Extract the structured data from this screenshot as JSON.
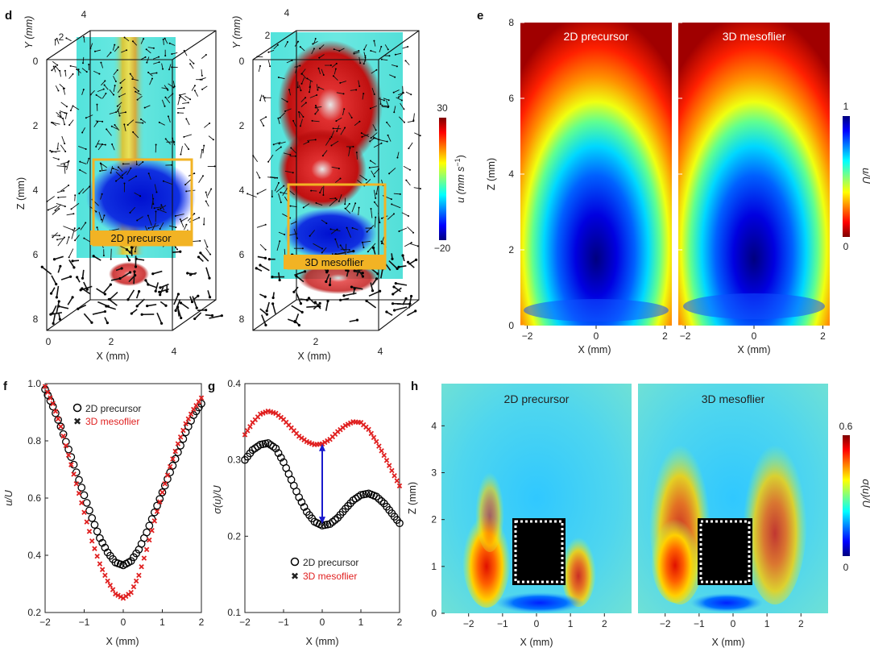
{
  "panels": {
    "d": "d",
    "e": "e",
    "f": "f",
    "g": "g",
    "h": "h"
  },
  "colors": {
    "jet": [
      "#00007f",
      "#0000ff",
      "#007fff",
      "#00ffff",
      "#7fff7f",
      "#ffff00",
      "#ff7f00",
      "#ff0000",
      "#7f0000"
    ],
    "highlight": "#f2b324",
    "precursor_marker": "#000000",
    "mesoflier_marker": "#e02020",
    "arrow": "#1a1acc"
  },
  "panel_d": {
    "left": {
      "y_axis_label": "Y (mm)",
      "y_axis_ticks": [
        "2",
        "4"
      ],
      "z_axis_label": "Z (mm)",
      "z_axis_ticks": [
        "0",
        "2",
        "4",
        "6",
        "8"
      ],
      "x_axis_label": "X (mm)",
      "x_axis_ticks": [
        "0",
        "2",
        "4"
      ],
      "box_label": "2D precursor"
    },
    "right": {
      "y_axis_label": "Y (mm)",
      "y_axis_ticks": [
        "2",
        "4"
      ],
      "z_axis_label": "Z (mm)",
      "z_axis_ticks": [
        "0",
        "2",
        "4",
        "6",
        "8"
      ],
      "x_axis_label": "X (mm)",
      "x_axis_ticks": [
        "2",
        "4"
      ],
      "box_label": "3D mesoflier"
    },
    "colorbar": {
      "max": "30",
      "min": "−20",
      "label_main": "u (mm s",
      "label_sup": "−1",
      "label_end": ")"
    }
  },
  "chart_data": [
    {
      "id": "e",
      "type": "heatmap",
      "titles": [
        "2D precursor",
        "3D mesoflier"
      ],
      "xlabel": "X (mm)",
      "ylabel": "Z (mm)",
      "x_ticks": [
        "−2",
        "0",
        "2"
      ],
      "y_ticks": [
        "0",
        "2",
        "4",
        "6",
        "8"
      ],
      "xlim": [
        -2.2,
        2.2
      ],
      "ylim": [
        0,
        8
      ],
      "colorbar": {
        "label": "u/U",
        "ticks": [
          "1",
          "0"
        ],
        "range": [
          0,
          1
        ]
      }
    },
    {
      "id": "f",
      "type": "scatter",
      "xlabel": "X (mm)",
      "ylabel": "u/U",
      "xlim": [
        -2,
        2
      ],
      "ylim": [
        0.2,
        1.0
      ],
      "x_ticks": [
        "−2",
        "−1",
        "0",
        "1",
        "2"
      ],
      "y_ticks": [
        "0.2",
        "0.4",
        "0.6",
        "0.8",
        "1.0"
      ],
      "x": [
        -2.0,
        -1.8,
        -1.6,
        -1.4,
        -1.2,
        -1.0,
        -0.8,
        -0.6,
        -0.4,
        -0.2,
        0.0,
        0.2,
        0.4,
        0.6,
        0.8,
        1.0,
        1.2,
        1.4,
        1.6,
        1.8,
        2.0
      ],
      "series": [
        {
          "name": "2D precursor",
          "marker": "circle",
          "values": [
            0.98,
            0.92,
            0.85,
            0.77,
            0.69,
            0.61,
            0.53,
            0.46,
            0.41,
            0.375,
            0.365,
            0.38,
            0.42,
            0.48,
            0.55,
            0.62,
            0.69,
            0.76,
            0.83,
            0.89,
            0.93
          ]
        },
        {
          "name": "3D mesoflier",
          "marker": "cross",
          "values": [
            0.99,
            0.93,
            0.85,
            0.75,
            0.65,
            0.55,
            0.45,
            0.37,
            0.31,
            0.265,
            0.25,
            0.27,
            0.33,
            0.42,
            0.52,
            0.62,
            0.71,
            0.79,
            0.86,
            0.91,
            0.95
          ]
        }
      ]
    },
    {
      "id": "g",
      "type": "scatter",
      "xlabel": "X (mm)",
      "ylabel": "σ(u)/U",
      "xlim": [
        -2,
        2
      ],
      "ylim": [
        0.1,
        0.4
      ],
      "x_ticks": [
        "−2",
        "−1",
        "0",
        "1",
        "2"
      ],
      "y_ticks": [
        "0.1",
        "0.2",
        "0.3",
        "0.4"
      ],
      "x": [
        -2.0,
        -1.8,
        -1.6,
        -1.4,
        -1.2,
        -1.0,
        -0.8,
        -0.6,
        -0.4,
        -0.2,
        0.0,
        0.2,
        0.4,
        0.6,
        0.8,
        1.0,
        1.2,
        1.4,
        1.6,
        1.8,
        2.0
      ],
      "series": [
        {
          "name": "2D precursor",
          "marker": "circle",
          "values": [
            0.3,
            0.313,
            0.32,
            0.322,
            0.315,
            0.297,
            0.274,
            0.251,
            0.232,
            0.219,
            0.214,
            0.216,
            0.224,
            0.236,
            0.247,
            0.254,
            0.256,
            0.252,
            0.243,
            0.23,
            0.217
          ]
        },
        {
          "name": "3D mesoflier",
          "marker": "cross",
          "values": [
            0.333,
            0.349,
            0.36,
            0.364,
            0.361,
            0.353,
            0.342,
            0.331,
            0.324,
            0.32,
            0.321,
            0.327,
            0.337,
            0.345,
            0.35,
            0.349,
            0.34,
            0.324,
            0.306,
            0.286,
            0.266
          ]
        }
      ],
      "arrow": {
        "x": 0,
        "from": 0.216,
        "to": 0.321
      }
    },
    {
      "id": "h",
      "type": "heatmap",
      "titles": [
        "2D precursor",
        "3D mesoflier"
      ],
      "xlabel": "X (mm)",
      "ylabel": "Z (mm)",
      "x_ticks": [
        "−2",
        "−1",
        "0",
        "1",
        "2"
      ],
      "y_ticks": [
        "0",
        "1",
        "2",
        "3",
        "4"
      ],
      "xlim": [
        -2.8,
        2.8
      ],
      "ylim": [
        0,
        4.9
      ],
      "colorbar": {
        "label": "σ(u)/U",
        "ticks": [
          "0.6",
          "0"
        ],
        "range": [
          0,
          0.6
        ]
      }
    }
  ]
}
